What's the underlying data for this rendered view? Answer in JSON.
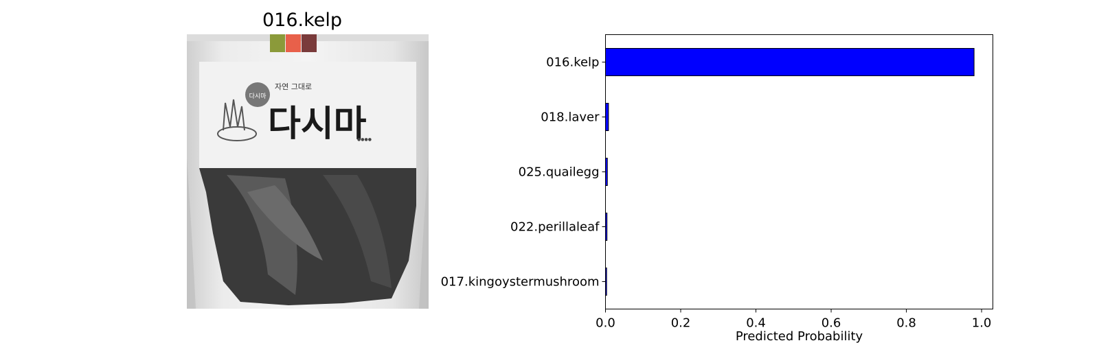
{
  "figure_title": "016.kelp",
  "photo": {
    "package_text": "다시마",
    "package_small_text": "자연 그대로",
    "accent_colors": [
      "#8b9a3a",
      "#e8604a",
      "#7a3b3b"
    ]
  },
  "chart_data": {
    "type": "bar",
    "orientation": "horizontal",
    "categories": [
      "016.kelp",
      "018.laver",
      "025.quailegg",
      "022.perillaleaf",
      "017.kingoystermushroom"
    ],
    "values": [
      0.98,
      0.008,
      0.005,
      0.004,
      0.003
    ],
    "xlabel": "Predicted Probability",
    "ylabel": "",
    "xlim": [
      0.0,
      1.03
    ],
    "xticks": [
      "0.0",
      "0.2",
      "0.4",
      "0.6",
      "0.8",
      "1.0"
    ],
    "bar_color": "#0000ff",
    "grid": false
  }
}
